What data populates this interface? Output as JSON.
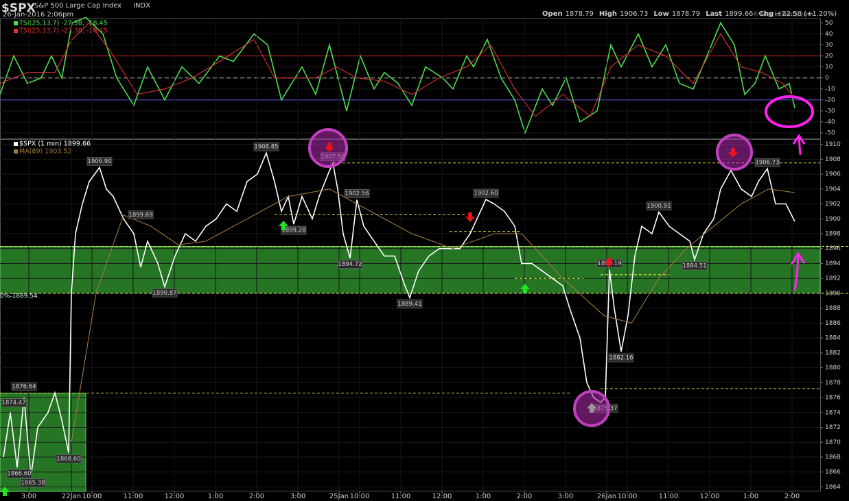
{
  "header": {
    "symbol": "$SPX",
    "name": "S&P 500 Large Cap Index",
    "exchange": "INDX",
    "date": "26-Jan-2016 2:06pm",
    "quote": [
      {
        "label": "Open",
        "value": "1878.79"
      },
      {
        "label": "High",
        "value": "1906.73"
      },
      {
        "label": "Low",
        "value": "1878.79"
      },
      {
        "label": "Last",
        "value": "1899.66"
      },
      {
        "label": "Chg",
        "value": "+22.58 (+1.20%)"
      }
    ],
    "credit": "© StockCharts.com"
  },
  "chart_data": [
    {
      "type": "line",
      "xlim": [
        0,
        1195
      ],
      "ylim": [
        -55,
        54
      ],
      "yticks": [
        50,
        40,
        30,
        20,
        10,
        0,
        -10,
        -20,
        -30,
        -40,
        -50
      ],
      "hlines": [
        {
          "value": 20,
          "color": "#cc2222",
          "dash": false
        },
        {
          "value": 0,
          "color": "#bbbbbb",
          "dash": true
        },
        {
          "value": -20,
          "color": "#5555dd",
          "dash": false
        }
      ],
      "series": [
        {
          "name": "TSI(25,13,7) -27.38, -18.45",
          "color": "#4fdc4f",
          "x": [
            0,
            20,
            40,
            60,
            75,
            90,
            105,
            125,
            150,
            170,
            195,
            215,
            240,
            265,
            290,
            320,
            340,
            370,
            390,
            410,
            425,
            440,
            460,
            480,
            505,
            525,
            545,
            560,
            580,
            600,
            620,
            645,
            660,
            680,
            690,
            710,
            730,
            750,
            765,
            790,
            805,
            825,
            845,
            870,
            890,
            905,
            930,
            950,
            970,
            990,
            1010,
            1030,
            1050,
            1070,
            1085,
            1100,
            1115,
            1135,
            1150,
            1158
          ],
          "values": [
            -15,
            20,
            -5,
            0,
            20,
            0,
            50,
            55,
            40,
            0,
            -25,
            10,
            -20,
            10,
            -5,
            20,
            15,
            40,
            30,
            -20,
            -5,
            10,
            -15,
            30,
            -30,
            20,
            -10,
            5,
            -5,
            -25,
            10,
            0,
            -10,
            20,
            10,
            35,
            0,
            -20,
            -50,
            -10,
            -25,
            0,
            -40,
            -30,
            30,
            10,
            40,
            10,
            30,
            -5,
            -10,
            20,
            50,
            30,
            -15,
            -5,
            20,
            -10,
            -5,
            -27.38
          ]
        },
        {
          "name": "TSI(25,13,7) -27.38, -18.45",
          "color": "#dd3333",
          "x": [
            0,
            40,
            80,
            105,
            130,
            160,
            200,
            240,
            280,
            320,
            370,
            400,
            430,
            460,
            490,
            520,
            560,
            600,
            640,
            680,
            715,
            750,
            780,
            820,
            860,
            890,
            930,
            970,
            1010,
            1050,
            1080,
            1110,
            1140,
            1158
          ],
          "values": [
            -5,
            5,
            5,
            35,
            50,
            25,
            -15,
            -10,
            0,
            15,
            35,
            0,
            0,
            0,
            10,
            0,
            -3,
            -15,
            0,
            10,
            30,
            -10,
            -35,
            -15,
            -35,
            10,
            30,
            20,
            -5,
            40,
            10,
            5,
            -5,
            -18.45
          ]
        }
      ]
    },
    {
      "type": "line",
      "xlim": [
        0,
        1195
      ],
      "ylim": [
        1863.4,
        1910.7
      ],
      "yticks": [
        1910,
        1908,
        1906,
        1904,
        1902,
        1900,
        1898,
        1896,
        1894,
        1892,
        1890,
        1888,
        1886,
        1884,
        1882,
        1880,
        1878,
        1876,
        1874,
        1872,
        1870,
        1868,
        1866,
        1864
      ],
      "xticks": [
        {
          "value": 42,
          "label": "3:00"
        },
        {
          "value": 104,
          "label": "22Jan"
        },
        {
          "value": 134,
          "label": "10:00"
        },
        {
          "value": 194,
          "label": "11:00"
        },
        {
          "value": 254,
          "label": "12:00"
        },
        {
          "value": 314,
          "label": "1:00"
        },
        {
          "value": 374,
          "label": "2:00"
        },
        {
          "value": 434,
          "label": "3:00"
        },
        {
          "value": 494,
          "label": "25Jan"
        },
        {
          "value": 524,
          "label": "10:00"
        },
        {
          "value": 584,
          "label": "11:00"
        },
        {
          "value": 644,
          "label": "12:00"
        },
        {
          "value": 704,
          "label": "1:00"
        },
        {
          "value": 764,
          "label": "2:00"
        },
        {
          "value": 824,
          "label": "3:00"
        },
        {
          "value": 884,
          "label": "26Jan"
        },
        {
          "value": 914,
          "label": "10:00"
        },
        {
          "value": 974,
          "label": "11:00"
        },
        {
          "value": 1034,
          "label": "12:00"
        },
        {
          "value": 1094,
          "label": "1:00"
        },
        {
          "value": 1154,
          "label": "2:00"
        }
      ],
      "series": [
        {
          "name": "$SPX (1 min) 1899.66",
          "color": "#ffffff",
          "x": [
            5,
            15,
            25,
            35,
            45,
            55,
            70,
            80,
            90,
            100,
            104,
            110,
            120,
            130,
            145,
            155,
            165,
            180,
            195,
            205,
            215,
            230,
            240,
            255,
            270,
            285,
            300,
            315,
            330,
            345,
            360,
            375,
            388,
            400,
            410,
            420,
            428,
            440,
            455,
            465,
            478,
            485,
            492,
            500,
            510,
            520,
            530,
            545,
            560,
            575,
            590,
            597,
            610,
            625,
            640,
            655,
            670,
            685,
            695,
            708,
            720,
            735,
            750,
            760,
            775,
            790,
            805,
            820,
            830,
            845,
            855,
            865,
            875,
            882,
            888,
            895,
            905,
            915,
            925,
            935,
            950,
            960,
            975,
            990,
            1005,
            1012,
            1025,
            1040,
            1050,
            1065,
            1080,
            1095,
            1105,
            1118,
            1130,
            1145,
            1158
          ],
          "values": [
            1868,
            1874,
            1866.6,
            1876,
            1865.38,
            1872,
            1874,
            1876.64,
            1873,
            1868.6,
            1890,
            1898,
            1902,
            1905,
            1906.9,
            1904,
            1903,
            1900,
            1898,
            1893.49,
            1897,
            1894,
            1890.87,
            1895,
            1898,
            1897,
            1899,
            1900,
            1902,
            1901,
            1905,
            1906,
            1908.85,
            1905,
            1901,
            1903,
            1899.28,
            1903,
            1900,
            1903,
            1906,
            1907.5,
            1904,
            1898,
            1894.72,
            1902.56,
            1899,
            1897,
            1895,
            1895,
            1891,
            1889.41,
            1893,
            1895,
            1896,
            1896,
            1896,
            1898,
            1900,
            1902.6,
            1902,
            1901,
            1899,
            1894,
            1894,
            1893,
            1892,
            1891,
            1888,
            1884,
            1878,
            1876,
            1875.37,
            1876,
            1893.19,
            1888,
            1882.16,
            1887,
            1895,
            1899,
            1898,
            1900.91,
            1899,
            1898,
            1897,
            1894.51,
            1898,
            1900,
            1904,
            1906.5,
            1904,
            1903,
            1905,
            1906.73,
            1902,
            1902,
            1899.66
          ]
        },
        {
          "name": "MA(89) 1903.52",
          "color": "#a07840",
          "x": [
            104,
            140,
            180,
            220,
            260,
            300,
            360,
            420,
            480,
            540,
            600,
            660,
            720,
            760,
            820,
            880,
            920,
            960,
            1000,
            1040,
            1080,
            1120,
            1158
          ],
          "values": [
            1870,
            1890,
            1900.5,
            1899,
            1896.5,
            1897,
            1900,
            1903,
            1904,
            1901,
            1898,
            1896,
            1898,
            1898,
            1892,
            1887,
            1886,
            1892,
            1896,
            1899,
            1902,
            1904,
            1903.52
          ]
        }
      ],
      "point_labels": {
        "x": [
          145,
          205,
          240,
          388,
          428,
          485,
          520,
          510,
          597,
          708,
          888,
          905,
          882,
          960,
          1012,
          1118,
          35,
          20,
          28,
          48,
          100
        ],
        "values": [
          1906.9,
          1899.69,
          1890.87,
          1908.85,
          1899.28,
          1907.5,
          1902.56,
          1894.72,
          1889.41,
          1902.6,
          1893.19,
          1882.16,
          1875.37,
          1900.91,
          1894.51,
          1906.73,
          1876.64,
          1874.47,
          1866.6,
          1865.38,
          1868.6
        ],
        "value_labels": [
          "1906.90",
          "1899.69",
          "1890.87",
          "1908.85",
          "1899.28",
          "1907.50",
          "1902.56",
          "1894.72",
          "1889.41",
          "1902.60",
          "1893.19",
          "1882.16",
          "1875.37",
          "1900.91",
          "1894.51",
          "1906.73",
          "1876.64",
          "1874.47",
          "1866.60",
          "1865.38",
          "1868.60"
        ]
      },
      "levels": [
        {
          "value": 1907.5,
          "x": [
            485,
            1195
          ]
        },
        {
          "value": 1900.6,
          "x": [
            400,
            680
          ]
        },
        {
          "value": 1898.3,
          "x": [
            655,
            760
          ]
        },
        {
          "value": 1892,
          "x": [
            750,
            850
          ]
        },
        {
          "value": 1892.5,
          "x": [
            875,
            975
          ]
        },
        {
          "value": 1876.6,
          "x": [
            0,
            830
          ]
        },
        {
          "value": 1877.2,
          "x": [
            875,
            1195
          ]
        },
        {
          "value": 1896.3,
          "x": [
            0,
            1237
          ]
        },
        {
          "value": 1890,
          "x": [
            0,
            1237
          ]
        }
      ],
      "zones": [
        {
          "y": [
            1890,
            1896.3
          ],
          "x": [
            0,
            1195
          ]
        },
        {
          "y": [
            1863.4,
            1876.6
          ],
          "x": [
            0,
            125
          ]
        }
      ],
      "zone_label": {
        "label": "0%-1889.54",
        "value": 1889.54
      }
    }
  ]
}
